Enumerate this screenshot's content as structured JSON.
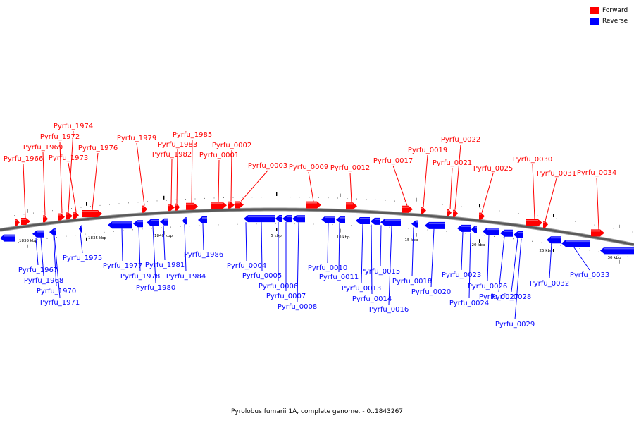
{
  "legend": [
    {
      "label": "Forward",
      "color": "#ff0000"
    },
    {
      "label": "Reverse",
      "color": "#0000ff"
    }
  ],
  "caption": "Pyrolobus fumarii 1A, complete genome. - 0..1843267",
  "scale_labels": [
    "1830 kbp",
    "1835 kbp",
    "1840 kbp",
    "5 kbp",
    "10 kbp",
    "15 kbp",
    "20 kbp",
    "25 kbp",
    "30 kbp"
  ],
  "forward_genes": [
    "Pyrfu_1966",
    "Pyrfu_1969",
    "Pyrfu_1972",
    "Pyrfu_1974",
    "Pyrfu_1973",
    "Pyrfu_1976",
    "Pyrfu_1979",
    "Pyrfu_1985",
    "Pyrfu_1983",
    "Pyrfu_1982",
    "Pyrfu_0002",
    "Pyrfu_0001",
    "Pyrfu_0003",
    "Pyrfu_0009",
    "Pyrfu_0012",
    "Pyrfu_0017",
    "Pyrfu_0019",
    "Pyrfu_0022",
    "Pyrfu_0021",
    "Pyrfu_0025",
    "Pyrfu_0030",
    "Pyrfu_0031",
    "Pyrfu_0034"
  ],
  "reverse_genes": [
    "Pyrfu_1967",
    "Pyrfu_1968",
    "Pyrfu_1970",
    "Pyrfu_1971",
    "Pyrfu_1975",
    "Pyrfu_1977",
    "Pyrfu_1978",
    "Pyrfu_1980",
    "Pyrfu_1981",
    "Pyrfu_1984",
    "Pyrfu_1986",
    "Pyrfu_0004",
    "Pyrfu_0005",
    "Pyrfu_0006",
    "Pyrfu_0007",
    "Pyrfu_0008",
    "Pyrfu_0010",
    "Pyrfu_0011",
    "Pyrfu_0013",
    "Pyrfu_0014",
    "Pyrfu_0015",
    "Pyrfu_0016",
    "Pyrfu_0018",
    "Pyrfu_0020",
    "Pyrfu_0023",
    "Pyrfu_0024",
    "Pyrfu_0026",
    "Pyrfu_0027",
    "Pyrfu_0028",
    "Pyrfu_0029",
    "Pyrfu_0032",
    "Pyrfu_0033"
  ]
}
